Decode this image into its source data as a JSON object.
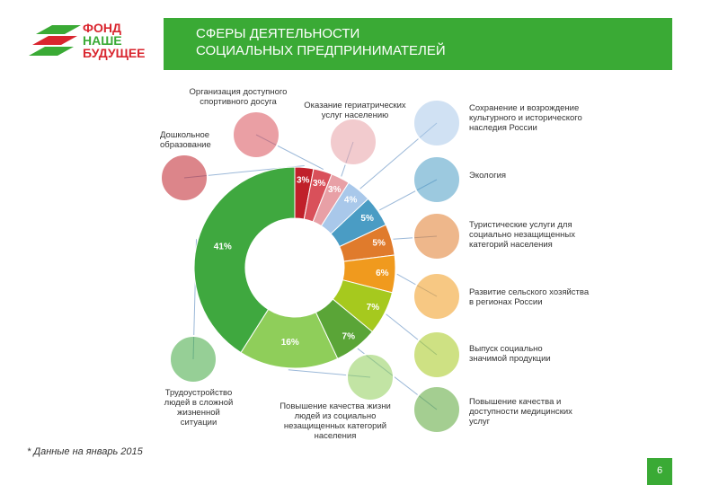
{
  "logo": [
    "ФОНД",
    "НАШЕ",
    "БУДУЩЕЕ"
  ],
  "footnote": "* Данные на январь 2015",
  "page_number": "6",
  "chart_data": {
    "type": "pie",
    "donut": true,
    "title": [
      "СФЕРЫ ДЕЯТЕЛЬНОСТИ",
      "СОЦИАЛЬНЫХ ПРЕДПРИНИМАТЕЛЕЙ"
    ],
    "categories": [
      "Дошкольное образование",
      "Организация доступного спортивного досуга",
      "Оказание гериатрических услуг населению",
      "Сохранение и возрождение культурного и исторического наследия России",
      "Экология",
      "Туристические услуги для социально незащищенных категорий населения",
      "Развитие сельского хозяйства в регионах России",
      "Выпуск социально значимой продукции",
      "Повышение качества и доступности медицинских услуг",
      "Повышение качества жизни людей из социально незащищенных категорий населения",
      "Трудоустройство людей в сложной жизненной ситуации"
    ],
    "values": [
      3,
      3,
      3,
      4,
      5,
      5,
      6,
      7,
      7,
      16,
      41
    ],
    "value_labels": [
      "3%",
      "3%",
      "3%",
      "4%",
      "5%",
      "5%",
      "6%",
      "7%",
      "7%",
      "16%",
      "41%"
    ],
    "colors": [
      "#c0202a",
      "#d9505a",
      "#e8a0a6",
      "#a9c8ea",
      "#4a9cc4",
      "#e07b2c",
      "#f09a1e",
      "#a6c91e",
      "#5aa537",
      "#8fce5a",
      "#3fa83f"
    ]
  }
}
